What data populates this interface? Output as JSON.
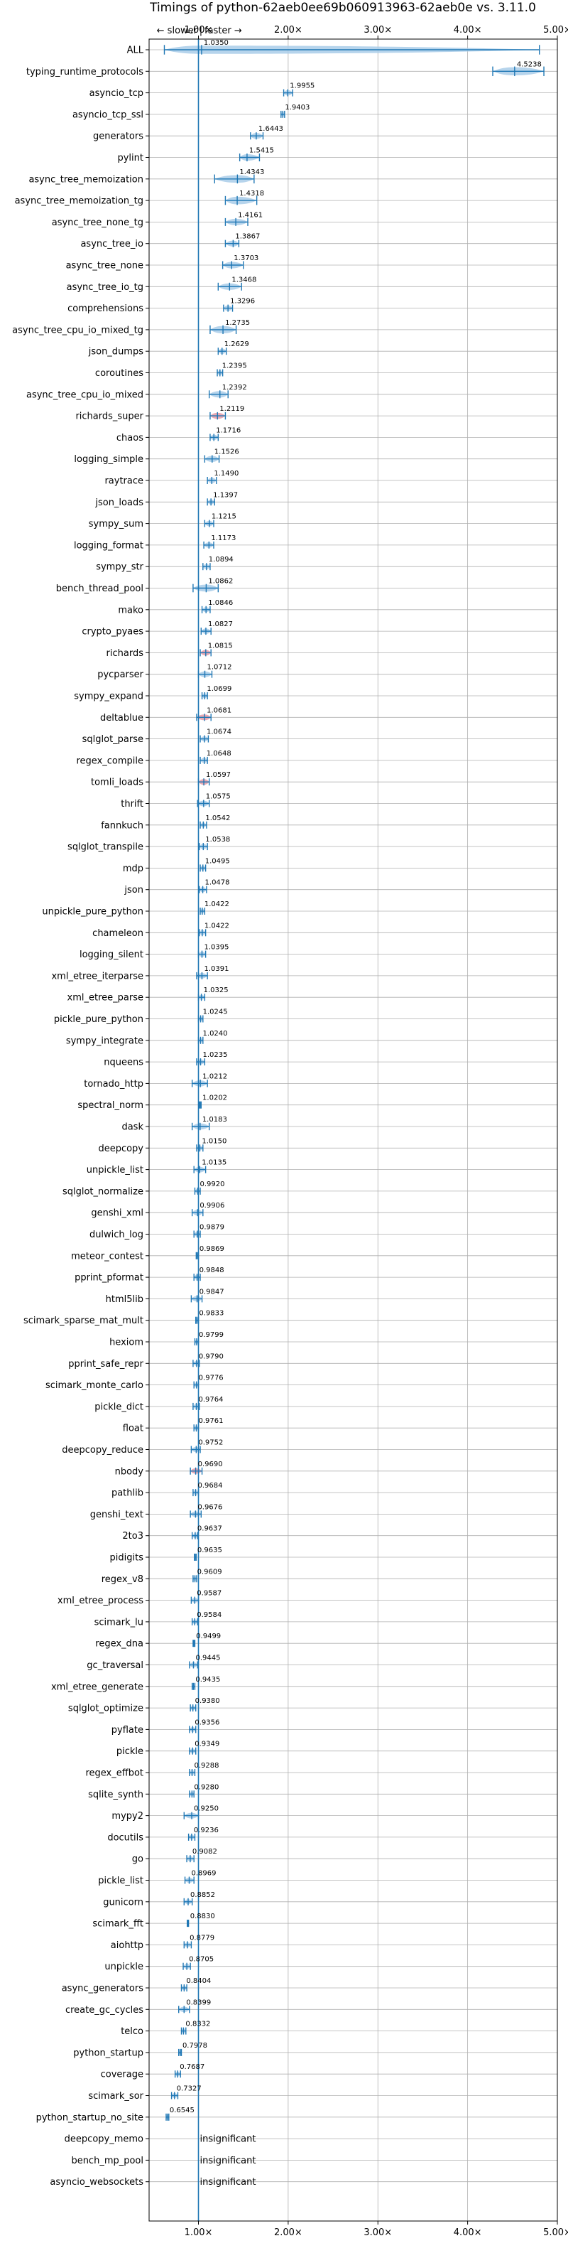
{
  "chart_data": {
    "type": "violin",
    "title": "Timings of python-62aeb0ee69b060913963-62aeb0e vs. 3.11.0",
    "direction_left": "← slower",
    "direction_sep": "|",
    "direction_right": "faster →",
    "xlim": [
      0.45,
      5.0
    ],
    "xticks": [
      1,
      2,
      3,
      4,
      5
    ],
    "xtick_labels": [
      "1.00×",
      "2.00×",
      "3.00×",
      "4.00×",
      "5.00×"
    ],
    "reference_line": 1.0,
    "grid": true,
    "insignificant_label": "insignificant",
    "benchmarks": [
      {
        "name": "ALL",
        "label": "1.0350",
        "mean": 1.035,
        "min": 0.62,
        "max": 4.8,
        "spread": 0.18,
        "color": "blue"
      },
      {
        "name": "typing_runtime_protocols",
        "label": "4.5238",
        "mean": 4.5238,
        "min": 4.28,
        "max": 4.85,
        "spread": 0.18,
        "color": "blue"
      },
      {
        "name": "asyncio_tcp",
        "label": "1.9955",
        "mean": 1.9955,
        "min": 1.95,
        "max": 2.05,
        "spread": 0.05,
        "color": "blue"
      },
      {
        "name": "asyncio_tcp_ssl",
        "label": "1.9403",
        "mean": 1.9403,
        "min": 1.92,
        "max": 1.96,
        "spread": 0.02,
        "color": "blue"
      },
      {
        "name": "generators",
        "label": "1.6443",
        "mean": 1.6443,
        "min": 1.58,
        "max": 1.72,
        "spread": 0.07,
        "color": "blue"
      },
      {
        "name": "pylint",
        "label": "1.5415",
        "mean": 1.5415,
        "min": 1.46,
        "max": 1.68,
        "spread": 0.1,
        "color": "blue"
      },
      {
        "name": "async_tree_memoization",
        "label": "1.4343",
        "mean": 1.4343,
        "min": 1.18,
        "max": 1.62,
        "spread": 0.15,
        "color": "blue"
      },
      {
        "name": "async_tree_memoization_tg",
        "label": "1.4318",
        "mean": 1.4318,
        "min": 1.3,
        "max": 1.65,
        "spread": 0.15,
        "color": "blue"
      },
      {
        "name": "async_tree_none_tg",
        "label": "1.4161",
        "mean": 1.4161,
        "min": 1.3,
        "max": 1.55,
        "spread": 0.1,
        "color": "blue"
      },
      {
        "name": "async_tree_io",
        "label": "1.3867",
        "mean": 1.3867,
        "min": 1.3,
        "max": 1.45,
        "spread": 0.07,
        "color": "blue"
      },
      {
        "name": "async_tree_none",
        "label": "1.3703",
        "mean": 1.3703,
        "min": 1.27,
        "max": 1.5,
        "spread": 0.1,
        "color": "blue"
      },
      {
        "name": "async_tree_io_tg",
        "label": "1.3468",
        "mean": 1.3468,
        "min": 1.22,
        "max": 1.48,
        "spread": 0.1,
        "color": "blue"
      },
      {
        "name": "comprehensions",
        "label": "1.3296",
        "mean": 1.3296,
        "min": 1.28,
        "max": 1.38,
        "spread": 0.05,
        "color": "blue"
      },
      {
        "name": "async_tree_cpu_io_mixed_tg",
        "label": "1.2735",
        "mean": 1.2735,
        "min": 1.13,
        "max": 1.42,
        "spread": 0.14,
        "color": "blue"
      },
      {
        "name": "json_dumps",
        "label": "1.2629",
        "mean": 1.2629,
        "min": 1.22,
        "max": 1.31,
        "spread": 0.05,
        "color": "blue"
      },
      {
        "name": "coroutines",
        "label": "1.2395",
        "mean": 1.2395,
        "min": 1.21,
        "max": 1.27,
        "spread": 0.03,
        "color": "blue"
      },
      {
        "name": "async_tree_cpu_io_mixed",
        "label": "1.2392",
        "mean": 1.2392,
        "min": 1.12,
        "max": 1.33,
        "spread": 0.1,
        "color": "blue"
      },
      {
        "name": "richards_super",
        "label": "1.2119",
        "mean": 1.2119,
        "min": 1.13,
        "max": 1.3,
        "spread": 0.08,
        "color": "red"
      },
      {
        "name": "chaos",
        "label": "1.1716",
        "mean": 1.1716,
        "min": 1.13,
        "max": 1.22,
        "spread": 0.05,
        "color": "blue"
      },
      {
        "name": "logging_simple",
        "label": "1.1526",
        "mean": 1.1526,
        "min": 1.07,
        "max": 1.23,
        "spread": 0.08,
        "color": "blue"
      },
      {
        "name": "raytrace",
        "label": "1.1490",
        "mean": 1.149,
        "min": 1.1,
        "max": 1.2,
        "spread": 0.05,
        "color": "blue"
      },
      {
        "name": "json_loads",
        "label": "1.1397",
        "mean": 1.1397,
        "min": 1.1,
        "max": 1.18,
        "spread": 0.04,
        "color": "blue"
      },
      {
        "name": "sympy_sum",
        "label": "1.1215",
        "mean": 1.1215,
        "min": 1.07,
        "max": 1.17,
        "spread": 0.05,
        "color": "blue"
      },
      {
        "name": "logging_format",
        "label": "1.1173",
        "mean": 1.1173,
        "min": 1.06,
        "max": 1.17,
        "spread": 0.05,
        "color": "blue"
      },
      {
        "name": "sympy_str",
        "label": "1.0894",
        "mean": 1.0894,
        "min": 1.05,
        "max": 1.13,
        "spread": 0.04,
        "color": "blue"
      },
      {
        "name": "bench_thread_pool",
        "label": "1.0862",
        "mean": 1.0862,
        "min": 0.94,
        "max": 1.22,
        "spread": 0.12,
        "color": "blue"
      },
      {
        "name": "mako",
        "label": "1.0846",
        "mean": 1.0846,
        "min": 1.04,
        "max": 1.13,
        "spread": 0.04,
        "color": "blue"
      },
      {
        "name": "crypto_pyaes",
        "label": "1.0827",
        "mean": 1.0827,
        "min": 1.03,
        "max": 1.14,
        "spread": 0.05,
        "color": "blue"
      },
      {
        "name": "richards",
        "label": "1.0815",
        "mean": 1.0815,
        "min": 1.02,
        "max": 1.14,
        "spread": 0.06,
        "color": "red"
      },
      {
        "name": "pycparser",
        "label": "1.0712",
        "mean": 1.0712,
        "min": 1.0,
        "max": 1.15,
        "spread": 0.06,
        "color": "blue"
      },
      {
        "name": "sympy_expand",
        "label": "1.0699",
        "mean": 1.0699,
        "min": 1.04,
        "max": 1.1,
        "spread": 0.03,
        "color": "blue"
      },
      {
        "name": "deltablue",
        "label": "1.0681",
        "mean": 1.0681,
        "min": 0.98,
        "max": 1.14,
        "spread": 0.07,
        "color": "red"
      },
      {
        "name": "sqlglot_parse",
        "label": "1.0674",
        "mean": 1.0674,
        "min": 1.02,
        "max": 1.11,
        "spread": 0.04,
        "color": "blue"
      },
      {
        "name": "regex_compile",
        "label": "1.0648",
        "mean": 1.0648,
        "min": 1.02,
        "max": 1.1,
        "spread": 0.04,
        "color": "blue"
      },
      {
        "name": "tomli_loads",
        "label": "1.0597",
        "mean": 1.0597,
        "min": 1.0,
        "max": 1.12,
        "spread": 0.06,
        "color": "red"
      },
      {
        "name": "thrift",
        "label": "1.0575",
        "mean": 1.0575,
        "min": 0.99,
        "max": 1.12,
        "spread": 0.06,
        "color": "blue"
      },
      {
        "name": "fannkuch",
        "label": "1.0542",
        "mean": 1.0542,
        "min": 1.02,
        "max": 1.09,
        "spread": 0.03,
        "color": "blue"
      },
      {
        "name": "sqlglot_transpile",
        "label": "1.0538",
        "mean": 1.0538,
        "min": 1.01,
        "max": 1.1,
        "spread": 0.04,
        "color": "blue"
      },
      {
        "name": "mdp",
        "label": "1.0495",
        "mean": 1.0495,
        "min": 1.02,
        "max": 1.08,
        "spread": 0.03,
        "color": "blue"
      },
      {
        "name": "json",
        "label": "1.0478",
        "mean": 1.0478,
        "min": 1.01,
        "max": 1.09,
        "spread": 0.04,
        "color": "blue"
      },
      {
        "name": "unpickle_pure_python",
        "label": "1.0422",
        "mean": 1.0422,
        "min": 1.02,
        "max": 1.07,
        "spread": 0.03,
        "color": "blue"
      },
      {
        "name": "chameleon",
        "label": "1.0422",
        "mean": 1.0422,
        "min": 1.01,
        "max": 1.08,
        "spread": 0.03,
        "color": "blue"
      },
      {
        "name": "logging_silent",
        "label": "1.0395",
        "mean": 1.0395,
        "min": 1.0,
        "max": 1.08,
        "spread": 0.04,
        "color": "blue"
      },
      {
        "name": "xml_etree_iterparse",
        "label": "1.0391",
        "mean": 1.0391,
        "min": 0.98,
        "max": 1.1,
        "spread": 0.05,
        "color": "blue"
      },
      {
        "name": "xml_etree_parse",
        "label": "1.0325",
        "mean": 1.0325,
        "min": 1.0,
        "max": 1.07,
        "spread": 0.03,
        "color": "blue"
      },
      {
        "name": "pickle_pure_python",
        "label": "1.0245",
        "mean": 1.0245,
        "min": 1.0,
        "max": 1.05,
        "spread": 0.02,
        "color": "blue"
      },
      {
        "name": "sympy_integrate",
        "label": "1.0240",
        "mean": 1.024,
        "min": 1.0,
        "max": 1.05,
        "spread": 0.02,
        "color": "blue"
      },
      {
        "name": "nqueens",
        "label": "1.0235",
        "mean": 1.0235,
        "min": 0.98,
        "max": 1.07,
        "spread": 0.04,
        "color": "blue"
      },
      {
        "name": "tornado_http",
        "label": "1.0212",
        "mean": 1.0212,
        "min": 0.93,
        "max": 1.1,
        "spread": 0.08,
        "color": "blue"
      },
      {
        "name": "spectral_norm",
        "label": "1.0202",
        "mean": 1.0202,
        "min": 1.01,
        "max": 1.03,
        "spread": 0.01,
        "color": "blue"
      },
      {
        "name": "dask",
        "label": "1.0183",
        "mean": 1.0183,
        "min": 0.93,
        "max": 1.12,
        "spread": 0.08,
        "color": "blue"
      },
      {
        "name": "deepcopy",
        "label": "1.0150",
        "mean": 1.015,
        "min": 0.98,
        "max": 1.05,
        "spread": 0.03,
        "color": "blue"
      },
      {
        "name": "unpickle_list",
        "label": "1.0135",
        "mean": 1.0135,
        "min": 0.95,
        "max": 1.08,
        "spread": 0.06,
        "color": "blue"
      },
      {
        "name": "sqlglot_normalize",
        "label": "0.9920",
        "mean": 0.992,
        "min": 0.96,
        "max": 1.02,
        "spread": 0.03,
        "color": "blue"
      },
      {
        "name": "genshi_xml",
        "label": "0.9906",
        "mean": 0.9906,
        "min": 0.93,
        "max": 1.05,
        "spread": 0.06,
        "color": "blue"
      },
      {
        "name": "dulwich_log",
        "label": "0.9879",
        "mean": 0.9879,
        "min": 0.95,
        "max": 1.02,
        "spread": 0.03,
        "color": "blue"
      },
      {
        "name": "meteor_contest",
        "label": "0.9869",
        "mean": 0.9869,
        "min": 0.975,
        "max": 1.0,
        "spread": 0.01,
        "color": "blue"
      },
      {
        "name": "pprint_pformat",
        "label": "0.9848",
        "mean": 0.9848,
        "min": 0.95,
        "max": 1.02,
        "spread": 0.03,
        "color": "blue"
      },
      {
        "name": "html5lib",
        "label": "0.9847",
        "mean": 0.9847,
        "min": 0.92,
        "max": 1.04,
        "spread": 0.05,
        "color": "blue"
      },
      {
        "name": "scimark_sparse_mat_mult",
        "label": "0.9833",
        "mean": 0.9833,
        "min": 0.97,
        "max": 1.0,
        "spread": 0.01,
        "color": "blue"
      },
      {
        "name": "hexiom",
        "label": "0.9799",
        "mean": 0.9799,
        "min": 0.96,
        "max": 1.0,
        "spread": 0.01,
        "color": "blue"
      },
      {
        "name": "pprint_safe_repr",
        "label": "0.9790",
        "mean": 0.979,
        "min": 0.94,
        "max": 1.01,
        "spread": 0.03,
        "color": "blue"
      },
      {
        "name": "scimark_monte_carlo",
        "label": "0.9776",
        "mean": 0.9776,
        "min": 0.95,
        "max": 1.0,
        "spread": 0.02,
        "color": "blue"
      },
      {
        "name": "pickle_dict",
        "label": "0.9764",
        "mean": 0.9764,
        "min": 0.94,
        "max": 1.01,
        "spread": 0.03,
        "color": "blue"
      },
      {
        "name": "float",
        "label": "0.9761",
        "mean": 0.9761,
        "min": 0.95,
        "max": 1.0,
        "spread": 0.02,
        "color": "blue"
      },
      {
        "name": "deepcopy_reduce",
        "label": "0.9752",
        "mean": 0.9752,
        "min": 0.92,
        "max": 1.02,
        "spread": 0.04,
        "color": "blue"
      },
      {
        "name": "nbody",
        "label": "0.9690",
        "mean": 0.969,
        "min": 0.91,
        "max": 1.04,
        "spread": 0.05,
        "color": "red"
      },
      {
        "name": "pathlib",
        "label": "0.9684",
        "mean": 0.9684,
        "min": 0.94,
        "max": 1.0,
        "spread": 0.02,
        "color": "blue"
      },
      {
        "name": "genshi_text",
        "label": "0.9676",
        "mean": 0.9676,
        "min": 0.91,
        "max": 1.03,
        "spread": 0.05,
        "color": "blue"
      },
      {
        "name": "2to3",
        "label": "0.9637",
        "mean": 0.9637,
        "min": 0.93,
        "max": 0.99,
        "spread": 0.02,
        "color": "blue"
      },
      {
        "name": "pidigits",
        "label": "0.9635",
        "mean": 0.9635,
        "min": 0.955,
        "max": 0.975,
        "spread": 0.01,
        "color": "blue"
      },
      {
        "name": "regex_v8",
        "label": "0.9609",
        "mean": 0.9609,
        "min": 0.94,
        "max": 0.98,
        "spread": 0.02,
        "color": "blue"
      },
      {
        "name": "xml_etree_process",
        "label": "0.9587",
        "mean": 0.9587,
        "min": 0.92,
        "max": 1.0,
        "spread": 0.03,
        "color": "blue"
      },
      {
        "name": "scimark_lu",
        "label": "0.9584",
        "mean": 0.9584,
        "min": 0.93,
        "max": 0.99,
        "spread": 0.02,
        "color": "blue"
      },
      {
        "name": "regex_dna",
        "label": "0.9499",
        "mean": 0.9499,
        "min": 0.94,
        "max": 0.96,
        "spread": 0.01,
        "color": "blue"
      },
      {
        "name": "gc_traversal",
        "label": "0.9445",
        "mean": 0.9445,
        "min": 0.9,
        "max": 0.99,
        "spread": 0.04,
        "color": "blue"
      },
      {
        "name": "xml_etree_generate",
        "label": "0.9435",
        "mean": 0.9435,
        "min": 0.93,
        "max": 0.96,
        "spread": 0.01,
        "color": "blue"
      },
      {
        "name": "sqlglot_optimize",
        "label": "0.9380",
        "mean": 0.938,
        "min": 0.91,
        "max": 0.97,
        "spread": 0.02,
        "color": "blue"
      },
      {
        "name": "pyflate",
        "label": "0.9356",
        "mean": 0.9356,
        "min": 0.9,
        "max": 0.97,
        "spread": 0.03,
        "color": "blue"
      },
      {
        "name": "pickle",
        "label": "0.9349",
        "mean": 0.9349,
        "min": 0.9,
        "max": 0.97,
        "spread": 0.03,
        "color": "blue"
      },
      {
        "name": "regex_effbot",
        "label": "0.9288",
        "mean": 0.9288,
        "min": 0.9,
        "max": 0.96,
        "spread": 0.02,
        "color": "blue"
      },
      {
        "name": "sqlite_synth",
        "label": "0.9280",
        "mean": 0.928,
        "min": 0.9,
        "max": 0.95,
        "spread": 0.02,
        "color": "blue"
      },
      {
        "name": "mypy2",
        "label": "0.9250",
        "mean": 0.925,
        "min": 0.84,
        "max": 1.0,
        "spread": 0.06,
        "color": "blue"
      },
      {
        "name": "docutils",
        "label": "0.9236",
        "mean": 0.9236,
        "min": 0.89,
        "max": 0.96,
        "spread": 0.03,
        "color": "blue"
      },
      {
        "name": "go",
        "label": "0.9082",
        "mean": 0.9082,
        "min": 0.87,
        "max": 0.95,
        "spread": 0.03,
        "color": "blue"
      },
      {
        "name": "pickle_list",
        "label": "0.8969",
        "mean": 0.8969,
        "min": 0.85,
        "max": 0.95,
        "spread": 0.04,
        "color": "blue"
      },
      {
        "name": "gunicorn",
        "label": "0.8852",
        "mean": 0.8852,
        "min": 0.84,
        "max": 0.93,
        "spread": 0.04,
        "color": "blue"
      },
      {
        "name": "scimark_fft",
        "label": "0.8830",
        "mean": 0.883,
        "min": 0.875,
        "max": 0.89,
        "spread": 0.01,
        "color": "blue"
      },
      {
        "name": "aiohttp",
        "label": "0.8779",
        "mean": 0.8779,
        "min": 0.84,
        "max": 0.92,
        "spread": 0.03,
        "color": "blue"
      },
      {
        "name": "unpickle",
        "label": "0.8705",
        "mean": 0.8705,
        "min": 0.83,
        "max": 0.91,
        "spread": 0.03,
        "color": "blue"
      },
      {
        "name": "async_generators",
        "label": "0.8404",
        "mean": 0.8404,
        "min": 0.81,
        "max": 0.87,
        "spread": 0.02,
        "color": "blue"
      },
      {
        "name": "create_gc_cycles",
        "label": "0.8399",
        "mean": 0.8399,
        "min": 0.78,
        "max": 0.9,
        "spread": 0.05,
        "color": "blue"
      },
      {
        "name": "telco",
        "label": "0.8332",
        "mean": 0.8332,
        "min": 0.81,
        "max": 0.86,
        "spread": 0.02,
        "color": "blue"
      },
      {
        "name": "python_startup",
        "label": "0.7978",
        "mean": 0.7978,
        "min": 0.78,
        "max": 0.81,
        "spread": 0.01,
        "color": "blue"
      },
      {
        "name": "coverage",
        "label": "0.7687",
        "mean": 0.7687,
        "min": 0.74,
        "max": 0.8,
        "spread": 0.02,
        "color": "blue"
      },
      {
        "name": "scimark_sor",
        "label": "0.7327",
        "mean": 0.7327,
        "min": 0.7,
        "max": 0.77,
        "spread": 0.03,
        "color": "blue"
      },
      {
        "name": "python_startup_no_site",
        "label": "0.6545",
        "mean": 0.6545,
        "min": 0.64,
        "max": 0.67,
        "spread": 0.01,
        "color": "blue"
      },
      {
        "name": "deepcopy_memo",
        "label": "insignificant",
        "mean": null,
        "min": null,
        "max": null,
        "spread": 0,
        "color": "none"
      },
      {
        "name": "bench_mp_pool",
        "label": "insignificant",
        "mean": null,
        "min": null,
        "max": null,
        "spread": 0,
        "color": "none"
      },
      {
        "name": "asyncio_websockets",
        "label": "insignificant",
        "mean": null,
        "min": null,
        "max": null,
        "spread": 0,
        "color": "none"
      }
    ]
  },
  "colors": {
    "violin_blue": "#a9cde9",
    "violin_red": "#e59aa6",
    "stat_line": "#1f77b4",
    "reference_line": "#1f77b4",
    "grid": "#b0b0b0",
    "axis": "#000000"
  }
}
